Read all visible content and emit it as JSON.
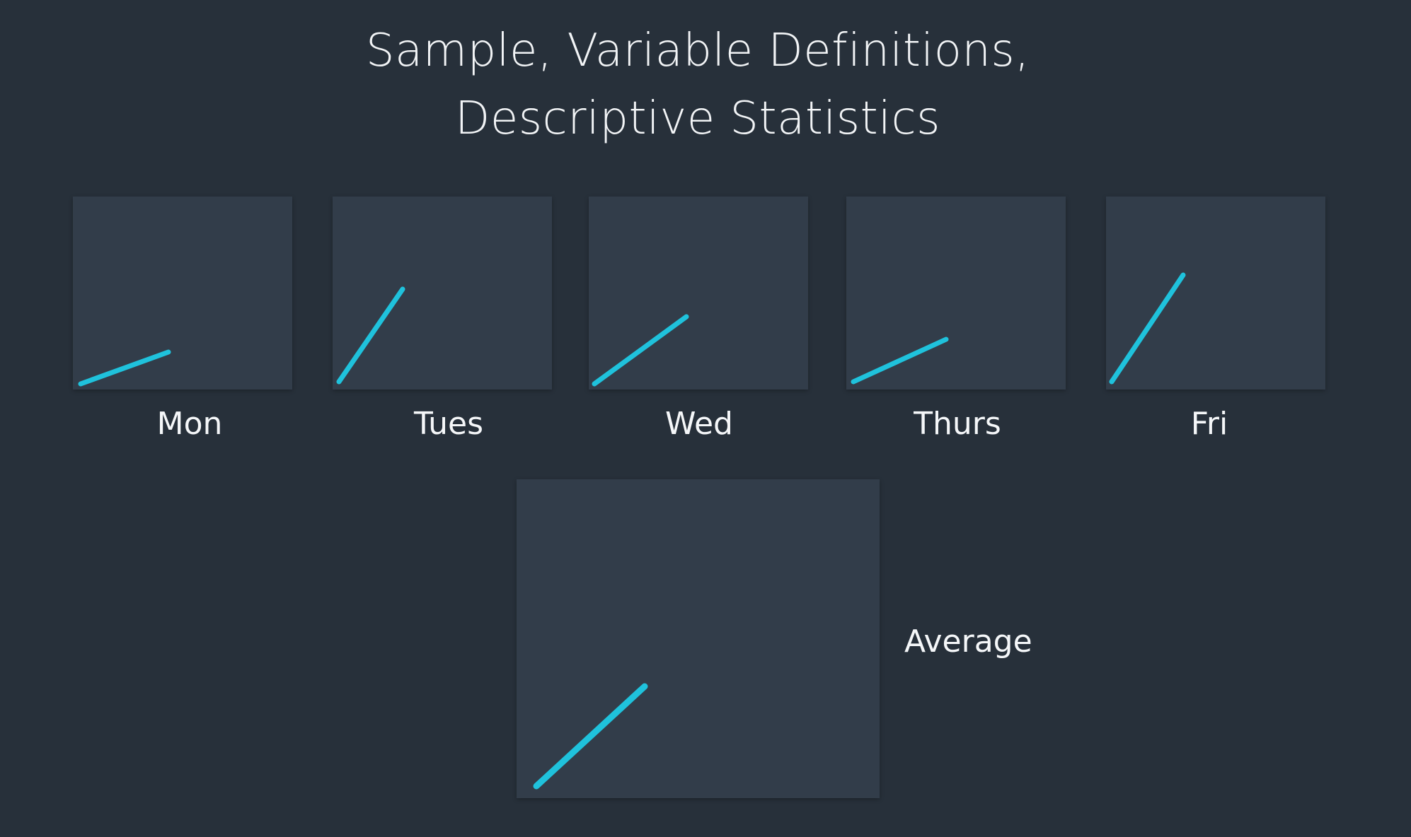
{
  "title": {
    "line1": "Sample, Variable Definitions,",
    "line2": "Descriptive Statistics"
  },
  "colors": {
    "background": "#27303a",
    "panel": "#323d4a",
    "line": "#1fc2dc",
    "text": "#f2f4f6"
  },
  "days": [
    {
      "label": "Mon"
    },
    {
      "label": "Tues"
    },
    {
      "label": "Wed"
    },
    {
      "label": "Thurs"
    },
    {
      "label": "Fri"
    }
  ],
  "average": {
    "label": "Average"
  }
}
